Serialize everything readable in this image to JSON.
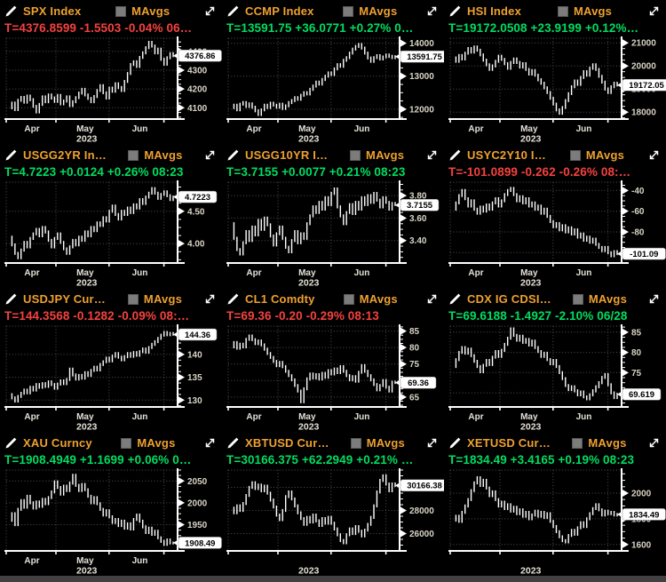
{
  "controls": {
    "mavgs_label": "MAvgs"
  },
  "colors": {
    "background": "#000000",
    "accent_amber": "#efa12f",
    "down_red": "#f5423e",
    "up_green": "#00dd60",
    "series_white": "#ffffff",
    "grid": "#4f4f4f",
    "axis_label": "#d9d3c5",
    "month_label": "#e4e0d5",
    "axis_line": "#ffffff",
    "pill_bg": "#ffffff",
    "pill_text": "#000000",
    "checkbox_gray": "#7c7c7c",
    "bottom_bar": "#414141"
  },
  "chart_data": [
    {
      "type": "bar",
      "title": "SPX Index",
      "quote": "T=4376.8599 -1.5503 -0.04% 06…",
      "quote_color": "red",
      "last": 4376.86,
      "last_label": "4376.86",
      "ylim": [
        4040,
        4470
      ],
      "yticks": [
        [
          4400,
          "4400"
        ],
        [
          4300,
          "4300"
        ],
        [
          4200,
          "4200"
        ],
        [
          4100,
          "4100"
        ]
      ],
      "months": [
        "Apr",
        "May",
        "Jun"
      ],
      "year": "2023",
      "values": [
        4100,
        4125,
        4090,
        4140,
        4155,
        4130,
        4162,
        4143,
        4108,
        4078,
        4118,
        4158,
        4132,
        4168,
        4152,
        4134,
        4166,
        4121,
        4136,
        4158,
        4112,
        4132,
        4154,
        4178,
        4198,
        4168,
        4150,
        4132,
        4160,
        4192,
        4218,
        4180,
        4152,
        4205,
        4188,
        4228,
        4208,
        4192,
        4240,
        4282,
        4330,
        4345,
        4320,
        4368,
        4392,
        4420,
        4448,
        4428,
        4392,
        4412,
        4358,
        4332,
        4366,
        4388,
        4377
      ]
    },
    {
      "type": "bar",
      "title": "CCMP Index",
      "quote": "T=13591.75 +36.0771 +0.27% 0…",
      "quote_color": "green",
      "last": 13591.75,
      "last_label": "13591.75",
      "ylim": [
        11700,
        14150
      ],
      "yticks": [
        [
          14000,
          "14000"
        ],
        [
          13000,
          "13000"
        ],
        [
          12000,
          "12000"
        ]
      ],
      "months": [
        "Apr",
        "May",
        "Jun"
      ],
      "year": "2023",
      "values": [
        12050,
        12120,
        11980,
        12150,
        12200,
        12080,
        12160,
        12060,
        11950,
        11840,
        11980,
        12120,
        12050,
        12180,
        12120,
        12060,
        12150,
        12020,
        12100,
        12200,
        12260,
        12350,
        12300,
        12420,
        12500,
        12460,
        12600,
        12700,
        12820,
        12760,
        12900,
        13000,
        13100,
        13050,
        13220,
        13350,
        13300,
        13480,
        13560,
        13700,
        13820,
        13900,
        13960,
        13850,
        13700,
        13550,
        13450,
        13560,
        13620,
        13520,
        13580,
        13640,
        13600,
        13560,
        13592
      ]
    },
    {
      "type": "bar",
      "title": "HSI Index",
      "quote": "T=19172.0508 +23.9199 +0.12%…",
      "quote_color": "green",
      "last": 19172.05,
      "last_label": "19172.05",
      "ylim": [
        17700,
        21200
      ],
      "yticks": [
        [
          21000,
          "21000"
        ],
        [
          20000,
          "20000"
        ],
        [
          19000,
          "19000"
        ],
        [
          18000,
          "18000"
        ]
      ],
      "months": [
        "Apr",
        "May",
        "Jun"
      ],
      "year": "2023",
      "values": [
        20350,
        20200,
        20450,
        20300,
        20550,
        20750,
        20600,
        20820,
        20680,
        20480,
        20250,
        20050,
        19850,
        20000,
        20200,
        20420,
        20280,
        20100,
        19900,
        20150,
        20300,
        20150,
        19950,
        20100,
        19850,
        19650,
        19800,
        19600,
        19400,
        19250,
        19050,
        18850,
        18600,
        18350,
        18100,
        17950,
        18200,
        18500,
        18800,
        19100,
        19350,
        19200,
        19500,
        19750,
        19600,
        19900,
        20050,
        19850,
        19550,
        19300,
        19000,
        18850,
        19100,
        19250,
        19172
      ]
    },
    {
      "type": "bar",
      "title": "USGG2YR In…",
      "quote": "T=4.7223 +0.0124 +0.26% 08:23",
      "quote_color": "green",
      "last": 4.7223,
      "last_label": "4.7223",
      "ylim": [
        3.7,
        4.95
      ],
      "yticks": [
        [
          4.5,
          "4.50"
        ],
        [
          4.0,
          "4.00"
        ]
      ],
      "months": [
        "Apr",
        "May",
        "Jun"
      ],
      "year": "2023",
      "values": [
        4.1,
        3.98,
        3.85,
        3.78,
        3.9,
        4.02,
        3.95,
        4.08,
        4.15,
        4.22,
        4.12,
        4.25,
        4.18,
        4.05,
        3.95,
        4.08,
        4.15,
        4.02,
        3.92,
        3.85,
        3.95,
        4.05,
        3.98,
        4.1,
        4.05,
        4.18,
        4.12,
        4.25,
        4.2,
        4.32,
        4.28,
        4.4,
        4.35,
        4.5,
        4.58,
        4.45,
        4.38,
        4.5,
        4.45,
        4.55,
        4.48,
        4.6,
        4.55,
        4.68,
        4.62,
        4.72,
        4.78,
        4.85,
        4.78,
        4.7,
        4.76,
        4.8,
        4.74,
        4.68,
        4.72
      ]
    },
    {
      "type": "bar",
      "title": "USGG10YR I…",
      "quote": "T=3.7155 +0.0077 +0.21% 08:23",
      "quote_color": "green",
      "last": 3.7155,
      "last_label": "3.7155",
      "ylim": [
        3.2,
        3.92
      ],
      "yticks": [
        [
          3.8,
          "3.80"
        ],
        [
          3.6,
          "3.60"
        ],
        [
          3.4,
          "3.40"
        ]
      ],
      "months": [
        "Apr",
        "May",
        "Jun"
      ],
      "year": "2023",
      "values": [
        3.55,
        3.42,
        3.32,
        3.28,
        3.38,
        3.48,
        3.4,
        3.52,
        3.45,
        3.58,
        3.5,
        3.6,
        3.54,
        3.44,
        3.36,
        3.46,
        3.52,
        3.42,
        3.34,
        3.3,
        3.4,
        3.48,
        3.38,
        3.46,
        3.42,
        3.55,
        3.62,
        3.7,
        3.65,
        3.74,
        3.68,
        3.78,
        3.72,
        3.82,
        3.86,
        3.7,
        3.62,
        3.55,
        3.65,
        3.72,
        3.64,
        3.74,
        3.68,
        3.78,
        3.72,
        3.8,
        3.74,
        3.82,
        3.76,
        3.7,
        3.78,
        3.74,
        3.68,
        3.73,
        3.72
      ]
    },
    {
      "type": "bar",
      "title": "USYC2Y10 I…",
      "quote": "T=-101.0899 -0.262 -0.26% 08:…",
      "quote_color": "red",
      "last": -101.09,
      "last_label": "-101.09",
      "ylim": [
        -110,
        -32
      ],
      "yticks": [
        [
          -40,
          "-40"
        ],
        [
          -60,
          "-60"
        ],
        [
          -80,
          "-80"
        ],
        [
          -100,
          "-100"
        ]
      ],
      "months": [
        "Apr",
        "May",
        "Jun"
      ],
      "year": "2023",
      "values": [
        -58,
        -52,
        -45,
        -40,
        -48,
        -55,
        -50,
        -58,
        -62,
        -56,
        -60,
        -54,
        -58,
        -52,
        -48,
        -55,
        -50,
        -44,
        -40,
        -38,
        -44,
        -50,
        -46,
        -52,
        -48,
        -55,
        -52,
        -58,
        -55,
        -62,
        -58,
        -65,
        -70,
        -75,
        -72,
        -78,
        -74,
        -80,
        -76,
        -82,
        -78,
        -85,
        -82,
        -88,
        -85,
        -90,
        -87,
        -92,
        -95,
        -98,
        -95,
        -100,
        -103,
        -99,
        -101
      ]
    },
    {
      "type": "bar",
      "title": "USDJPY Cur…",
      "quote": "T=144.3568 -0.1282 -0.09% 08:…",
      "quote_color": "red",
      "last": 144.36,
      "last_label": "144.36",
      "ylim": [
        128.5,
        146.2
      ],
      "yticks": [
        [
          140,
          "140"
        ],
        [
          135,
          "135"
        ],
        [
          130,
          "130"
        ]
      ],
      "months": [
        "Apr",
        "May",
        "Jun"
      ],
      "year": "2023",
      "values": [
        131.2,
        130.5,
        129.8,
        130.8,
        131.5,
        132.2,
        131.6,
        132.8,
        132.2,
        133.4,
        132.8,
        133.6,
        133.0,
        134.0,
        133.4,
        132.6,
        133.5,
        134.2,
        133.6,
        134.5,
        136.8,
        135.5,
        134.6,
        135.4,
        134.8,
        136.0,
        135.4,
        136.5,
        137.2,
        136.6,
        137.8,
        138.4,
        139.2,
        138.6,
        139.6,
        140.2,
        139.4,
        138.8,
        139.5,
        140.2,
        139.6,
        140.4,
        139.8,
        140.6,
        141.2,
        140.5,
        141.5,
        142.2,
        142.8,
        143.5,
        144.2,
        144.8,
        144.3,
        144.6,
        144.4
      ]
    },
    {
      "type": "bar",
      "title": "CL1 Comdty",
      "quote": "T=69.36 -0.20 -0.29% 08:13",
      "quote_color": "red",
      "last": 69.36,
      "last_label": "69.36",
      "ylim": [
        62,
        86.5
      ],
      "yticks": [
        [
          85,
          "85"
        ],
        [
          80,
          "80"
        ],
        [
          75,
          "75"
        ],
        [
          70,
          "70"
        ],
        [
          65,
          "65"
        ]
      ],
      "months": [
        "Apr",
        "May",
        "Jun"
      ],
      "year": "2023",
      "values": [
        80.2,
        81.5,
        79.8,
        81.0,
        80.2,
        82.5,
        83.5,
        82.4,
        81.2,
        82.0,
        80.8,
        79.5,
        78.2,
        77.0,
        75.8,
        74.5,
        75.5,
        74.2,
        72.8,
        71.5,
        70.2,
        68.5,
        66.8,
        63.6,
        67.5,
        70.5,
        72.0,
        70.8,
        71.8,
        70.5,
        72.2,
        71.0,
        73.0,
        72.0,
        73.5,
        72.4,
        74.2,
        72.8,
        71.5,
        70.2,
        71.2,
        69.8,
        72.5,
        74.5,
        72.8,
        71.5,
        70.2,
        68.8,
        67.2,
        68.5,
        70.0,
        68.0,
        66.8,
        69.5,
        69.4
      ]
    },
    {
      "type": "bar",
      "title": "CDX IG CDSI…",
      "quote": "T=69.6188 -1.4927 -2.10% 06/28",
      "quote_color": "green",
      "last": 69.619,
      "last_label": "69.619",
      "ylim": [
        66.5,
        86.5
      ],
      "yticks": [
        [
          85,
          "85"
        ],
        [
          80,
          "80"
        ],
        [
          75,
          "75"
        ],
        [
          70,
          "70"
        ]
      ],
      "months": [
        "Apr",
        "May",
        "Jun"
      ],
      "year": "2023",
      "values": [
        76.5,
        78.2,
        80.0,
        81.2,
        79.8,
        80.8,
        79.2,
        77.8,
        76.5,
        75.2,
        76.8,
        78.0,
        77.0,
        78.8,
        80.2,
        79.0,
        80.5,
        82.0,
        83.5,
        85.8,
        84.2,
        83.0,
        84.0,
        82.5,
        83.2,
        81.8,
        82.8,
        81.2,
        80.2,
        79.0,
        79.8,
        78.2,
        77.2,
        78.0,
        76.5,
        75.0,
        73.5,
        71.8,
        70.8,
        71.5,
        70.5,
        69.5,
        70.2,
        69.0,
        68.5,
        69.5,
        70.5,
        71.5,
        72.5,
        73.8,
        74.5,
        72.0,
        70.0,
        68.8,
        69.6
      ]
    },
    {
      "type": "bar",
      "title": "XAU Curncy",
      "quote": "T=1908.4949 +1.1699 +0.06% 0…",
      "quote_color": "green",
      "last": 1908.49,
      "last_label": "1908.49",
      "ylim": [
        1890,
        2075
      ],
      "yticks": [
        [
          2050,
          "2050"
        ],
        [
          2000,
          "2000"
        ],
        [
          1950,
          "1950"
        ]
      ],
      "months": [
        "Apr",
        "May",
        "Jun"
      ],
      "year": "2023",
      "values": [
        1960,
        1975,
        1950,
        1985,
        2005,
        1990,
        2015,
        2000,
        1988,
        2002,
        1992,
        2008,
        1998,
        2012,
        2025,
        2048,
        2035,
        2020,
        2038,
        2028,
        2045,
        2063,
        2040,
        2028,
        2042,
        2030,
        2015,
        2000,
        2012,
        1998,
        1985,
        1972,
        1982,
        1968,
        1955,
        1962,
        1948,
        1958,
        1942,
        1952,
        1940,
        1962,
        1972,
        1958,
        1945,
        1932,
        1942,
        1928,
        1935,
        1920,
        1912,
        1905,
        1915,
        1908,
        1908
      ]
    },
    {
      "type": "bar",
      "title": "XBTUSD Cur…",
      "quote": "T=30166.375 +62.2949 +0.21% …",
      "quote_color": "green",
      "last": 30166.38,
      "last_label": "30166.38",
      "ylim": [
        24500,
        31500
      ],
      "yticks": [
        [
          30000,
          "30000"
        ],
        [
          28000,
          "28000"
        ],
        [
          26000,
          "26000"
        ]
      ],
      "months": [],
      "year": "2023",
      "values": [
        28200,
        27800,
        28400,
        28000,
        28600,
        29300,
        30000,
        30400,
        29900,
        30200,
        29700,
        30100,
        29500,
        28900,
        28300,
        27600,
        27200,
        28000,
        29200,
        29600,
        29000,
        28400,
        27800,
        27300,
        26800,
        27400,
        27000,
        27600,
        27100,
        26700,
        27300,
        26900,
        27400,
        26900,
        26400,
        25900,
        25400,
        25200,
        25900,
        26400,
        26000,
        26600,
        26200,
        25800,
        26300,
        26800,
        27400,
        28400,
        29600,
        30600,
        31000,
        30300,
        29700,
        30300,
        30166
      ]
    },
    {
      "type": "bar",
      "title": "XETUSD Cur…",
      "quote": "T=1834.49 +3.4165 +0.19% 08:23",
      "quote_color": "green",
      "last": 1834.49,
      "last_label": "1834.49",
      "ylim": [
        1550,
        2180
      ],
      "yticks": [
        [
          2000,
          "2000"
        ],
        [
          1800,
          "1800"
        ],
        [
          1600,
          "1600"
        ]
      ],
      "months": [],
      "year": "2023",
      "values": [
        1790,
        1820,
        1780,
        1850,
        1900,
        1950,
        2020,
        2080,
        2120,
        2060,
        2100,
        2040,
        1980,
        2010,
        1950,
        1900,
        1930,
        1880,
        1910,
        1860,
        1890,
        1840,
        1870,
        1820,
        1850,
        1800,
        1830,
        1860,
        1820,
        1850,
        1810,
        1840,
        1780,
        1740,
        1700,
        1660,
        1630,
        1620,
        1670,
        1710,
        1680,
        1730,
        1770,
        1740,
        1800,
        1840,
        1880,
        1910,
        1870,
        1830,
        1860,
        1840,
        1850,
        1830,
        1834
      ]
    }
  ]
}
